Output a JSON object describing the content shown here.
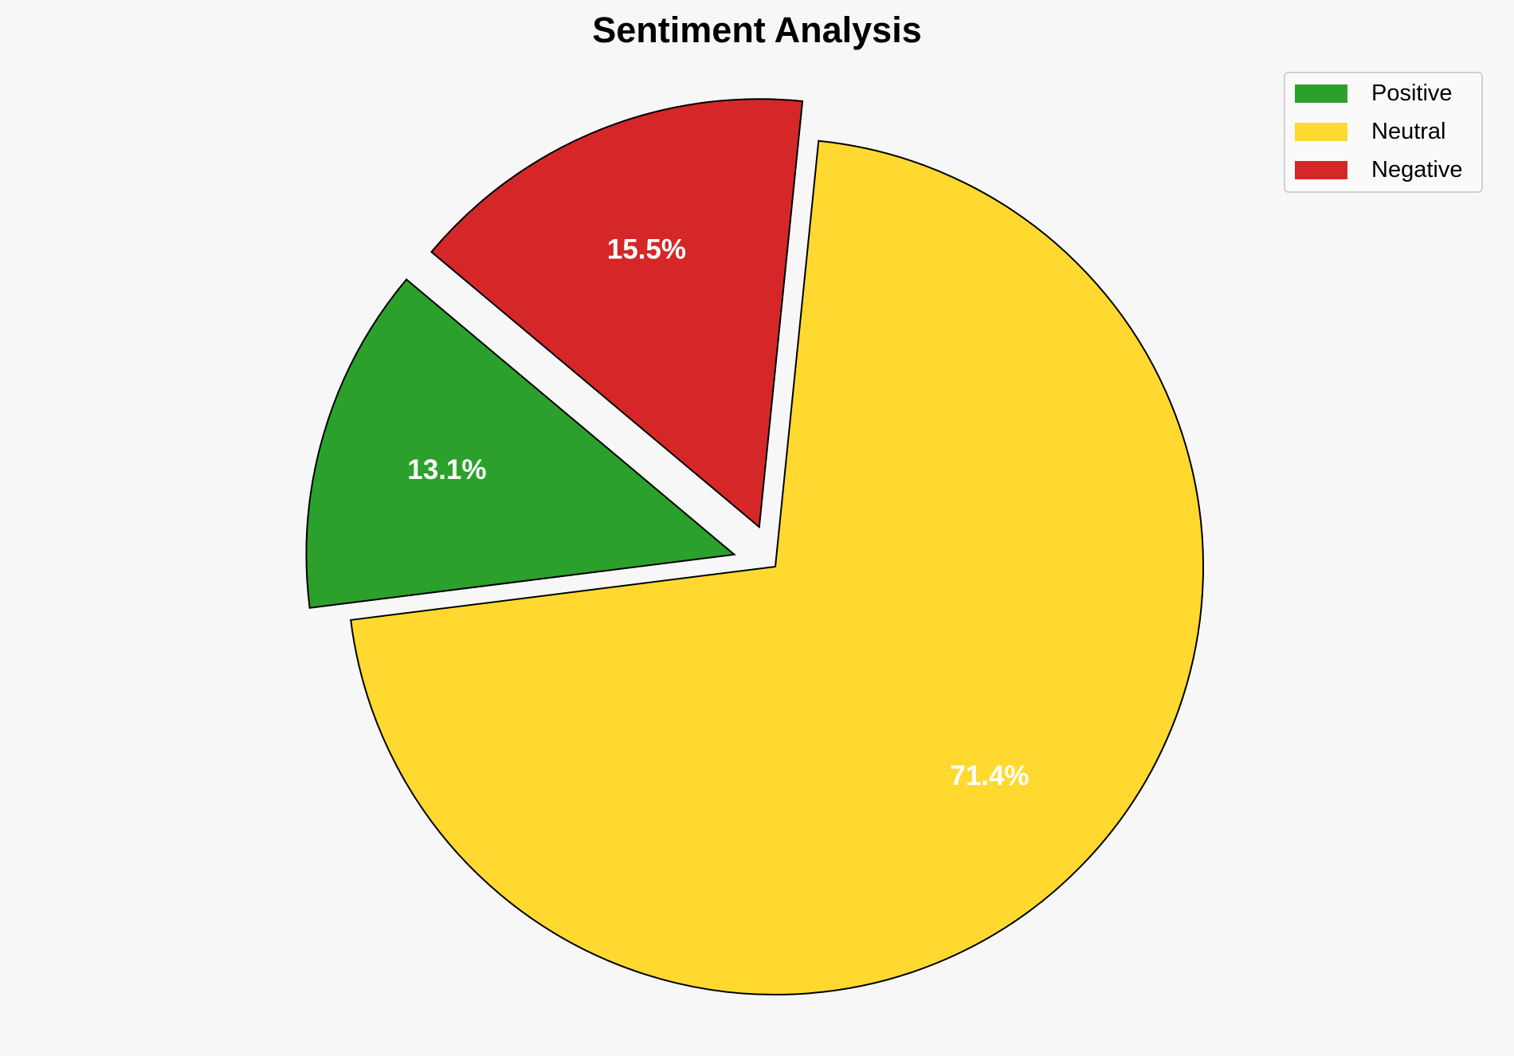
{
  "chart_data": {
    "type": "pie",
    "title": "Sentiment Analysis",
    "categories": [
      "Positive",
      "Neutral",
      "Negative"
    ],
    "values": [
      13.1,
      71.4,
      15.5
    ],
    "labels": [
      "13.1%",
      "71.4%",
      "15.5%"
    ],
    "colors": [
      "#2ca02c",
      "#ffd92f",
      "#d62728"
    ],
    "explode": [
      0.1,
      0,
      0.1
    ],
    "start_angle": 140,
    "direction": "counterclockwise",
    "legend_position": "top-right"
  }
}
